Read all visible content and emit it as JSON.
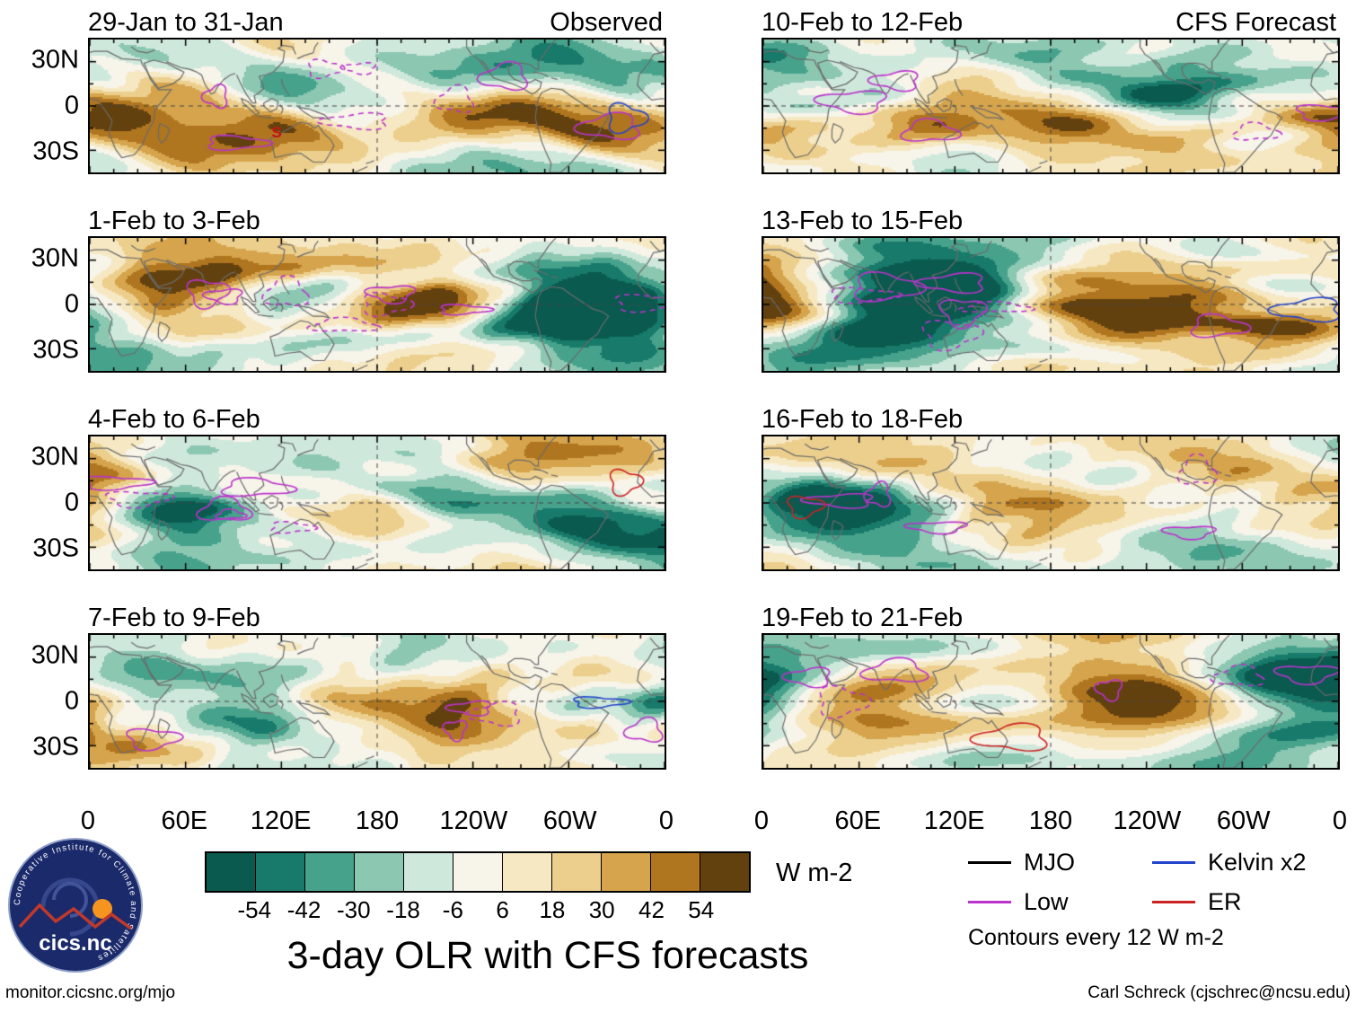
{
  "figure": {
    "title": "3-day OLR with CFS forecasts",
    "units_label": "W m-2",
    "footer_left": "monitor.cicsnc.org/mjo",
    "footer_right": "Carl Schreck (cjschrec@ncsu.edu)"
  },
  "panels": [
    {
      "title": "29-Jan to 31-Jan",
      "corner": "Observed",
      "column": "left",
      "storm": {
        "label": "S"
      }
    },
    {
      "title": "1-Feb to 3-Feb",
      "corner": "",
      "column": "left"
    },
    {
      "title": "4-Feb to 6-Feb",
      "corner": "",
      "column": "left"
    },
    {
      "title": "7-Feb to 9-Feb",
      "corner": "",
      "column": "left"
    },
    {
      "title": "10-Feb to 12-Feb",
      "corner": "CFS Forecast",
      "column": "right"
    },
    {
      "title": "13-Feb to 15-Feb",
      "corner": "",
      "column": "right"
    },
    {
      "title": "16-Feb to 18-Feb",
      "corner": "",
      "column": "right"
    },
    {
      "title": "19-Feb to 21-Feb",
      "corner": "",
      "column": "right"
    }
  ],
  "axes": {
    "x_ticks": [
      "0",
      "60E",
      "120E",
      "180",
      "120W",
      "60W",
      "0"
    ],
    "y_ticks": [
      "30N",
      "0",
      "30S"
    ]
  },
  "colorbar": {
    "ticks": [
      "-54",
      "-42",
      "-30",
      "-18",
      "-6",
      "6",
      "18",
      "30",
      "42",
      "54"
    ],
    "colors": [
      "#0a5a50",
      "#187a6a",
      "#47a28c",
      "#8cc7b2",
      "#cfe8dc",
      "#f7f4ea",
      "#f6e8c2",
      "#eccf8d",
      "#d5a44c",
      "#b0751f",
      "#63410f"
    ],
    "units": "W m-2"
  },
  "legend": {
    "items": [
      {
        "label": "MJO",
        "color": "#000000"
      },
      {
        "label": "Low",
        "color": "#bb33cc"
      },
      {
        "label": "Kelvin x2",
        "color": "#2244cc"
      },
      {
        "label": "ER",
        "color": "#cc2222"
      }
    ],
    "note": "Contours every 12 W m-2"
  },
  "logo": {
    "ring_text": "Cooperative Institute for Climate and Satellites",
    "name": "cics.nc"
  },
  "chart_data": {
    "type": "heatmap",
    "subtype": "filled-contour-world-maps",
    "title": "3-day OLR with CFS forecasts",
    "units": "W m-2",
    "lon_range": [
      0,
      360
    ],
    "lat_range": [
      -45,
      45
    ],
    "x_tick_labels": [
      "0",
      "60E",
      "120E",
      "180",
      "120W",
      "60W",
      "0"
    ],
    "y_tick_labels": [
      "30N",
      "0",
      "30S"
    ],
    "fill_levels": [
      -54,
      -42,
      -30,
      -18,
      -6,
      6,
      18,
      30,
      42,
      54
    ],
    "contour_interval": 12,
    "palette": [
      "#0a5a50",
      "#187a6a",
      "#47a28c",
      "#8cc7b2",
      "#cfe8dc",
      "#f7f4ea",
      "#f6e8c2",
      "#eccf8d",
      "#d5a44c",
      "#b0751f",
      "#63410f"
    ],
    "panels": [
      {
        "label": "29-Jan to 31-Jan",
        "source": "Observed"
      },
      {
        "label": "1-Feb to 3-Feb",
        "source": "Observed"
      },
      {
        "label": "4-Feb to 6-Feb",
        "source": "Observed"
      },
      {
        "label": "7-Feb to 9-Feb",
        "source": "Observed"
      },
      {
        "label": "10-Feb to 12-Feb",
        "source": "CFS Forecast"
      },
      {
        "label": "13-Feb to 15-Feb",
        "source": "CFS Forecast"
      },
      {
        "label": "16-Feb to 18-Feb",
        "source": "CFS Forecast"
      },
      {
        "label": "19-Feb to 21-Feb",
        "source": "CFS Forecast"
      }
    ],
    "overlays": [
      {
        "name": "MJO",
        "color": "#000000"
      },
      {
        "name": "Low",
        "color": "#bb33cc"
      },
      {
        "name": "Kelvin x2",
        "color": "#2244cc"
      },
      {
        "name": "ER",
        "color": "#cc2222"
      }
    ]
  }
}
